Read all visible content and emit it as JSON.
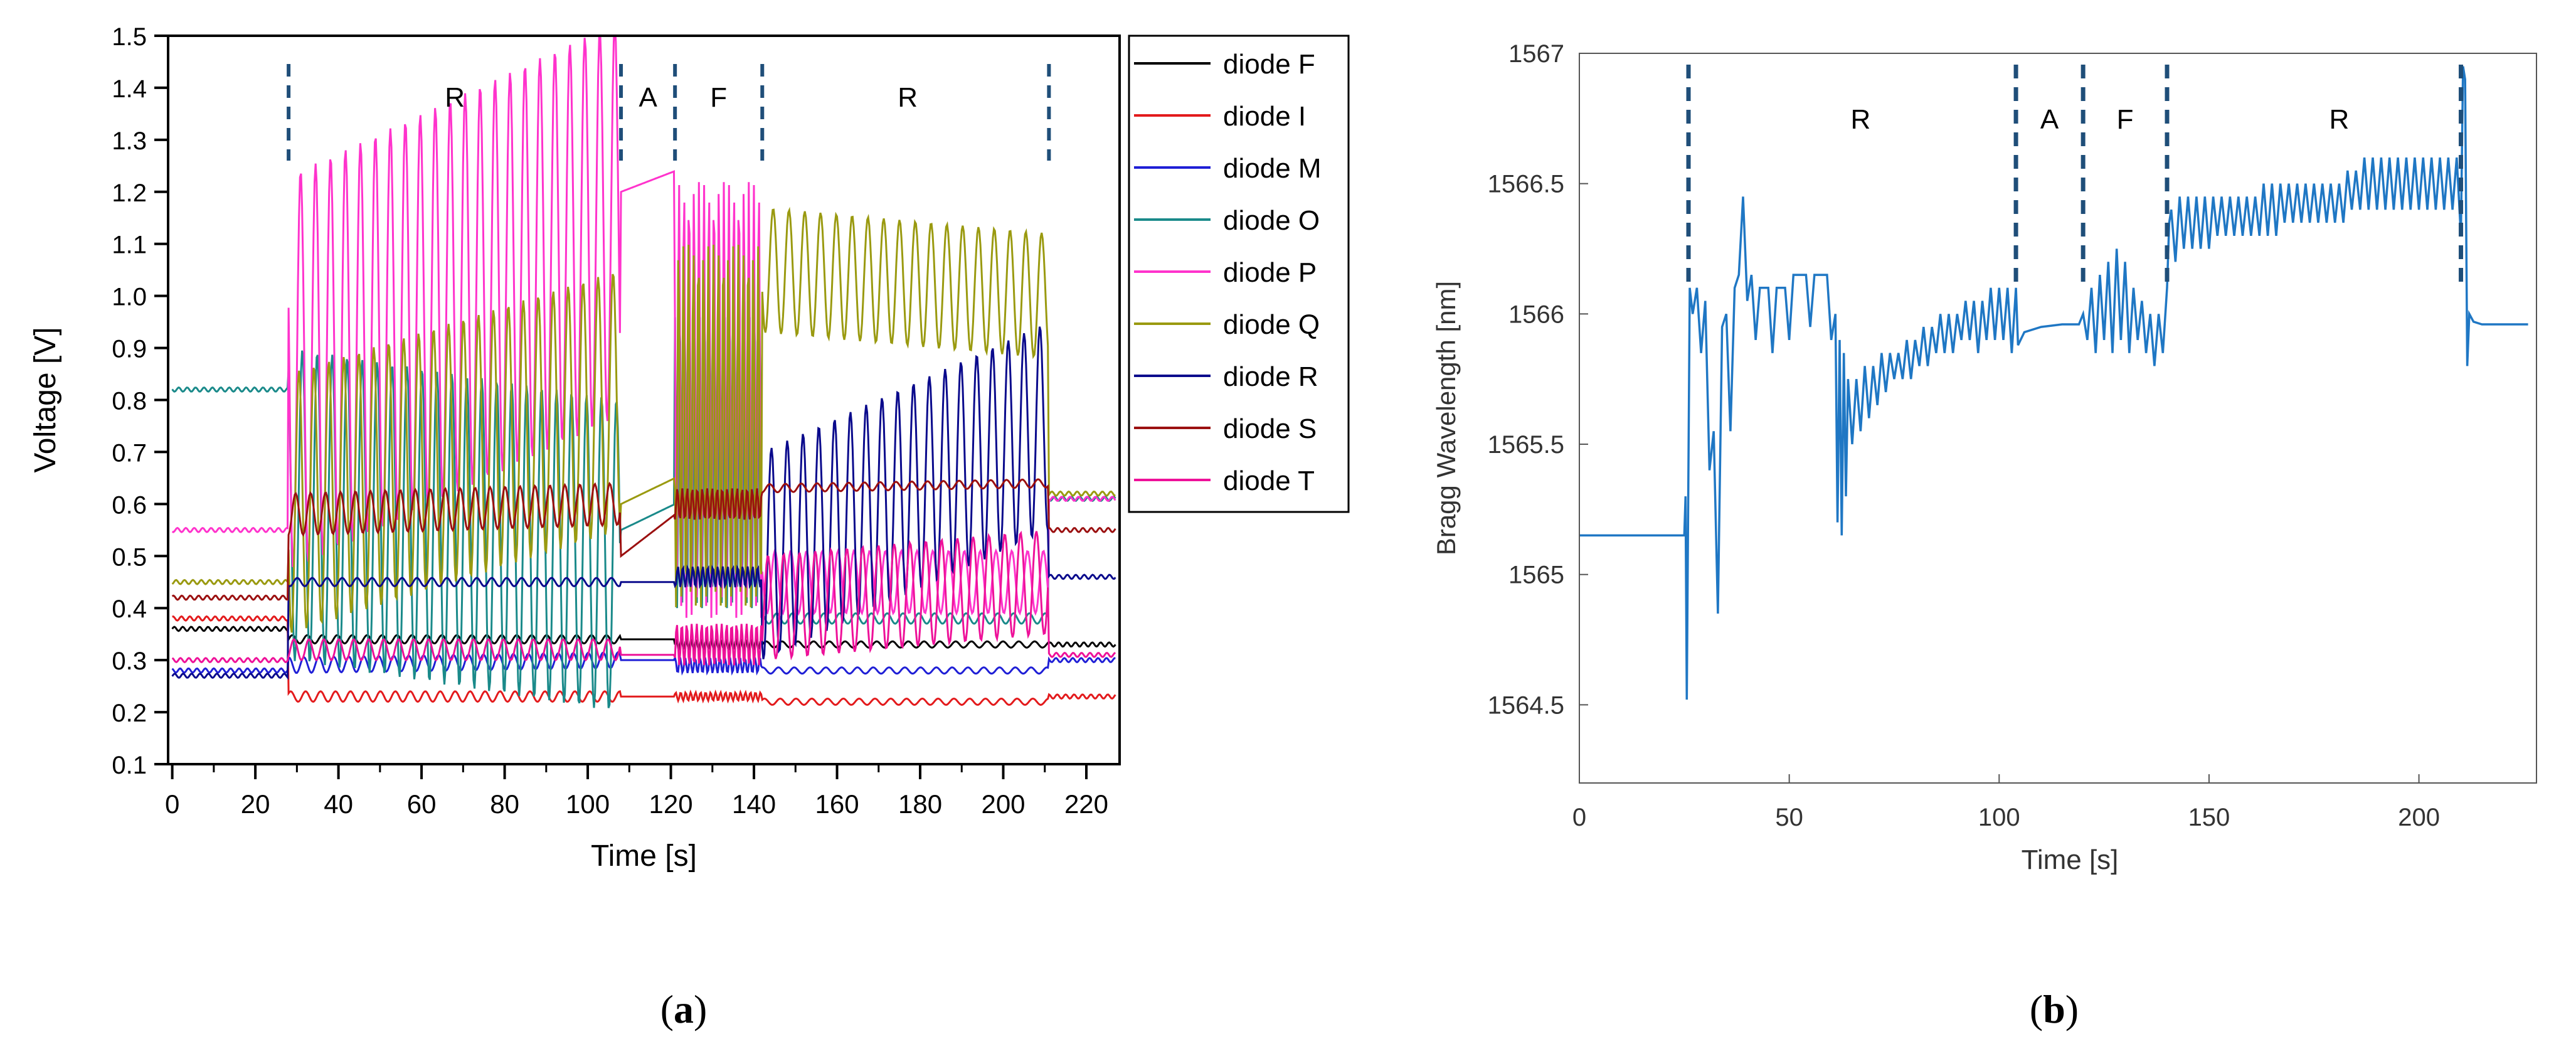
{
  "panels": {
    "a": {
      "label_open": "(",
      "label_letter": "a",
      "label_close": ")"
    },
    "b": {
      "label_open": "(",
      "label_letter": "b",
      "label_close": ")"
    }
  },
  "chart_data": [
    {
      "id": "a",
      "type": "line",
      "title": "",
      "xlabel": "Time [s]",
      "ylabel": "Voltage [V]",
      "xlim": [
        -1,
        228
      ],
      "ylim": [
        0.1,
        1.5
      ],
      "xticks": [
        0,
        20,
        40,
        60,
        80,
        100,
        120,
        140,
        160,
        180,
        200,
        220
      ],
      "xtick_labels": [
        "0",
        "20",
        "40",
        "60",
        "80",
        "100",
        "120",
        "140",
        "160",
        "180",
        "200",
        "220"
      ],
      "yticks": [
        0.1,
        0.2,
        0.3,
        0.4,
        0.5,
        0.6,
        0.7,
        0.8,
        0.9,
        1.0,
        1.1,
        1.2,
        1.3,
        1.4,
        1.5
      ],
      "ytick_labels": [
        "0.1",
        "0.2",
        "0.3",
        "0.4",
        "0.5",
        "0.6",
        "0.7",
        "0.8",
        "0.9",
        "1.0",
        "1.1",
        "1.2",
        "1.3",
        "1.4",
        "1.5"
      ],
      "legend_position": "outside-right-top",
      "phase_lines": [
        28,
        108,
        121,
        142,
        211
      ],
      "phase_labels": [
        {
          "text": "R",
          "x": 68
        },
        {
          "text": "A",
          "x": 114.5
        },
        {
          "text": "F",
          "x": 131.5
        },
        {
          "text": "R",
          "x": 177
        }
      ],
      "series": [
        {
          "name": "diode F",
          "color": "#000000",
          "pre": 0.36,
          "r1": [
            0.34,
            0.34
          ],
          "a": [
            0.34,
            0.34
          ],
          "f": [
            0.33,
            0.33
          ],
          "r2": [
            0.33,
            0.33
          ],
          "post": 0.33,
          "osc_r1": 0.008,
          "osc_f": 0.01,
          "osc_r2": 0.006
        },
        {
          "name": "diode I",
          "color": "#e31a1c",
          "pre": 0.38,
          "r1": [
            0.23,
            0.23
          ],
          "a": [
            0.23,
            0.23
          ],
          "f": [
            0.23,
            0.23
          ],
          "r2": [
            0.22,
            0.22
          ],
          "post": 0.23,
          "osc_r1": 0.01,
          "osc_f": 0.008,
          "osc_r2": 0.006
        },
        {
          "name": "diode M",
          "color": "#1f1fd6",
          "pre": 0.28,
          "r1": [
            0.29,
            0.3
          ],
          "a": [
            0.3,
            0.3
          ],
          "f": [
            0.29,
            0.29
          ],
          "r2": [
            0.28,
            0.28
          ],
          "post": 0.3,
          "osc_r1": 0.015,
          "osc_f": 0.015,
          "osc_r2": 0.006
        },
        {
          "name": "diode O",
          "color": "#1a8a8a",
          "pre": 0.82,
          "r1": [
            0.6,
            0.5
          ],
          "a": [
            0.55,
            0.6
          ],
          "f": [
            0.7,
            0.7
          ],
          "r2": [
            0.38,
            0.38
          ],
          "post": 0.61,
          "osc_r1": 0.3,
          "osc_f": 0.3,
          "osc_r2": 0.01
        },
        {
          "name": "diode P",
          "color": "#ff33cc",
          "pre": 0.55,
          "r1": [
            0.85,
            1.15
          ],
          "a": [
            1.2,
            1.24
          ],
          "f": [
            0.8,
            0.8
          ],
          "r2": [
            0.45,
            0.45
          ],
          "post": 0.61,
          "osc_r1": 0.38,
          "osc_f": 0.42,
          "osc_r2": 0.06
        },
        {
          "name": "diode Q",
          "color": "#9a9a10",
          "pre": 0.45,
          "r1": [
            0.6,
            0.8
          ],
          "a": [
            0.6,
            0.65
          ],
          "f": [
            0.75,
            0.75
          ],
          "r2": [
            1.05,
            1.0
          ],
          "post": 0.62,
          "osc_r1": 0.25,
          "osc_f": 0.35,
          "osc_r2": 0.12
        },
        {
          "name": "diode R",
          "color": "#0a0a8c",
          "pre": 0.27,
          "r1": [
            0.45,
            0.45
          ],
          "a": [
            0.45,
            0.45
          ],
          "f": [
            0.46,
            0.46
          ],
          "r2": [
            0.5,
            0.75
          ],
          "post": 0.46,
          "osc_r1": 0.008,
          "osc_f": 0.02,
          "osc_r2": 0.2
        },
        {
          "name": "diode S",
          "color": "#9b1010",
          "pre": 0.42,
          "r1": [
            0.58,
            0.6
          ],
          "a": [
            0.5,
            0.58
          ],
          "f": [
            0.6,
            0.6
          ],
          "r2": [
            0.63,
            0.64
          ],
          "post": 0.55,
          "osc_r1": 0.04,
          "osc_f": 0.03,
          "osc_r2": 0.008
        },
        {
          "name": "diode T",
          "color": "#ee1199",
          "pre": 0.3,
          "r1": [
            0.32,
            0.32
          ],
          "a": [
            0.31,
            0.31
          ],
          "f": [
            0.33,
            0.33
          ],
          "r2": [
            0.4,
            0.45
          ],
          "post": 0.31,
          "osc_r1": 0.02,
          "osc_f": 0.04,
          "osc_r2": 0.1
        }
      ]
    },
    {
      "id": "b",
      "type": "line",
      "title": "",
      "xlabel": "Time [s]",
      "ylabel": "Bragg Wavelength [nm]",
      "xlim": [
        0,
        228
      ],
      "ylim": [
        1564.2,
        1567
      ],
      "xticks": [
        0,
        50,
        100,
        150,
        200
      ],
      "xtick_labels": [
        "0",
        "50",
        "100",
        "150",
        "200"
      ],
      "yticks": [
        1564.5,
        1565,
        1565.5,
        1566,
        1566.5,
        1567
      ],
      "ytick_labels": [
        "1564.5",
        "1565",
        "1565.5",
        "1566",
        "1566.5",
        "1567"
      ],
      "phase_lines": [
        26,
        104,
        120,
        140,
        210
      ],
      "phase_labels": [
        {
          "text": "R",
          "x": 67
        },
        {
          "text": "A",
          "x": 112
        },
        {
          "text": "F",
          "x": 130
        },
        {
          "text": "R",
          "x": 181
        }
      ],
      "series": [
        {
          "name": "Bragg wavelength",
          "color": "#1f77c4",
          "points": [
            [
              0,
              1565.15
            ],
            [
              25,
              1565.15
            ],
            [
              25.3,
              1565.3
            ],
            [
              25.6,
              1564.52
            ],
            [
              26.3,
              1566.1
            ],
            [
              27,
              1566.0
            ],
            [
              28,
              1566.1
            ],
            [
              29,
              1565.85
            ],
            [
              30,
              1566.05
            ],
            [
              31,
              1565.4
            ],
            [
              32,
              1565.55
            ],
            [
              33,
              1564.85
            ],
            [
              34,
              1565.95
            ],
            [
              35,
              1566.0
            ],
            [
              36,
              1565.55
            ],
            [
              37,
              1566.1
            ],
            [
              38,
              1566.15
            ],
            [
              39,
              1566.45
            ],
            [
              40,
              1566.05
            ],
            [
              41,
              1566.15
            ],
            [
              42,
              1565.9
            ],
            [
              43,
              1566.1
            ],
            [
              45,
              1566.1
            ],
            [
              46,
              1565.85
            ],
            [
              47,
              1566.1
            ],
            [
              49,
              1566.1
            ],
            [
              50,
              1565.9
            ],
            [
              51,
              1566.15
            ],
            [
              54,
              1566.15
            ],
            [
              55,
              1565.95
            ],
            [
              56,
              1566.15
            ],
            [
              59,
              1566.15
            ],
            [
              60,
              1565.9
            ],
            [
              61,
              1566.0
            ],
            [
              61.5,
              1565.2
            ],
            [
              62,
              1565.9
            ],
            [
              62.5,
              1565.15
            ],
            [
              63,
              1565.85
            ],
            [
              63.5,
              1565.3
            ],
            [
              64,
              1565.75
            ],
            [
              65,
              1565.5
            ],
            [
              66,
              1565.75
            ],
            [
              67,
              1565.55
            ],
            [
              68,
              1565.8
            ],
            [
              69,
              1565.6
            ],
            [
              70,
              1565.8
            ],
            [
              71,
              1565.65
            ],
            [
              72,
              1565.85
            ],
            [
              73,
              1565.7
            ],
            [
              74,
              1565.85
            ],
            [
              75,
              1565.75
            ],
            [
              76,
              1565.85
            ],
            [
              77,
              1565.75
            ],
            [
              78,
              1565.9
            ],
            [
              79,
              1565.75
            ],
            [
              80,
              1565.9
            ],
            [
              81,
              1565.8
            ],
            [
              82,
              1565.95
            ],
            [
              83,
              1565.8
            ],
            [
              84,
              1565.95
            ],
            [
              85,
              1565.85
            ],
            [
              86,
              1566.0
            ],
            [
              87,
              1565.85
            ],
            [
              88,
              1566.0
            ],
            [
              89,
              1565.85
            ],
            [
              90,
              1566.0
            ],
            [
              91,
              1565.9
            ],
            [
              92,
              1566.05
            ],
            [
              93,
              1565.9
            ],
            [
              94,
              1566.05
            ],
            [
              95,
              1565.85
            ],
            [
              96,
              1566.05
            ],
            [
              97,
              1565.9
            ],
            [
              98,
              1566.1
            ],
            [
              99,
              1565.9
            ],
            [
              100,
              1566.1
            ],
            [
              101,
              1565.9
            ],
            [
              102,
              1566.1
            ],
            [
              103,
              1565.85
            ],
            [
              104,
              1566.1
            ],
            [
              104.5,
              1565.88
            ],
            [
              106,
              1565.93
            ],
            [
              110,
              1565.95
            ],
            [
              115,
              1565.96
            ],
            [
              119,
              1565.96
            ],
            [
              120,
              1566.0
            ],
            [
              121,
              1565.9
            ],
            [
              122,
              1566.1
            ],
            [
              123,
              1565.85
            ],
            [
              124,
              1566.15
            ],
            [
              125,
              1565.9
            ],
            [
              126,
              1566.2
            ],
            [
              127,
              1565.85
            ],
            [
              128,
              1566.25
            ],
            [
              129,
              1565.9
            ],
            [
              130,
              1566.2
            ],
            [
              131,
              1565.85
            ],
            [
              132,
              1566.1
            ],
            [
              133,
              1565.9
            ],
            [
              134,
              1566.05
            ],
            [
              135,
              1565.85
            ],
            [
              136,
              1566.0
            ],
            [
              137,
              1565.8
            ],
            [
              138,
              1566.0
            ],
            [
              139,
              1565.85
            ],
            [
              140,
              1566.1
            ],
            [
              140.5,
              1566.35
            ],
            [
              141,
              1566.4
            ],
            [
              142,
              1566.2
            ],
            [
              143,
              1566.45
            ],
            [
              144,
              1566.25
            ],
            [
              145,
              1566.45
            ],
            [
              146,
              1566.25
            ],
            [
              147,
              1566.45
            ],
            [
              148,
              1566.25
            ],
            [
              149,
              1566.45
            ],
            [
              150,
              1566.25
            ],
            [
              151,
              1566.45
            ],
            [
              152,
              1566.3
            ],
            [
              153,
              1566.45
            ],
            [
              154,
              1566.3
            ],
            [
              155,
              1566.45
            ],
            [
              156,
              1566.3
            ],
            [
              157,
              1566.45
            ],
            [
              158,
              1566.3
            ],
            [
              159,
              1566.45
            ],
            [
              160,
              1566.3
            ],
            [
              161,
              1566.45
            ],
            [
              162,
              1566.3
            ],
            [
              163,
              1566.5
            ],
            [
              164,
              1566.3
            ],
            [
              165,
              1566.5
            ],
            [
              166,
              1566.3
            ],
            [
              167,
              1566.5
            ],
            [
              168,
              1566.35
            ],
            [
              169,
              1566.5
            ],
            [
              170,
              1566.35
            ],
            [
              171,
              1566.5
            ],
            [
              172,
              1566.35
            ],
            [
              173,
              1566.5
            ],
            [
              174,
              1566.35
            ],
            [
              175,
              1566.5
            ],
            [
              176,
              1566.35
            ],
            [
              177,
              1566.5
            ],
            [
              178,
              1566.35
            ],
            [
              179,
              1566.5
            ],
            [
              180,
              1566.35
            ],
            [
              181,
              1566.5
            ],
            [
              182,
              1566.35
            ],
            [
              183,
              1566.55
            ],
            [
              184,
              1566.4
            ],
            [
              185,
              1566.55
            ],
            [
              186,
              1566.4
            ],
            [
              187,
              1566.6
            ],
            [
              188,
              1566.4
            ],
            [
              189,
              1566.6
            ],
            [
              190,
              1566.4
            ],
            [
              191,
              1566.6
            ],
            [
              192,
              1566.4
            ],
            [
              193,
              1566.6
            ],
            [
              194,
              1566.4
            ],
            [
              195,
              1566.6
            ],
            [
              196,
              1566.4
            ],
            [
              197,
              1566.6
            ],
            [
              198,
              1566.4
            ],
            [
              199,
              1566.6
            ],
            [
              200,
              1566.4
            ],
            [
              201,
              1566.6
            ],
            [
              202,
              1566.4
            ],
            [
              203,
              1566.6
            ],
            [
              204,
              1566.4
            ],
            [
              205,
              1566.6
            ],
            [
              206,
              1566.4
            ],
            [
              207,
              1566.6
            ],
            [
              208,
              1566.4
            ],
            [
              209,
              1566.6
            ],
            [
              210,
              1566.3
            ],
            [
              210.5,
              1566.95
            ],
            [
              211,
              1566.9
            ],
            [
              211.5,
              1565.8
            ],
            [
              212,
              1566.0
            ],
            [
              213,
              1565.97
            ],
            [
              215,
              1565.96
            ],
            [
              226,
              1565.96
            ]
          ]
        }
      ]
    }
  ]
}
